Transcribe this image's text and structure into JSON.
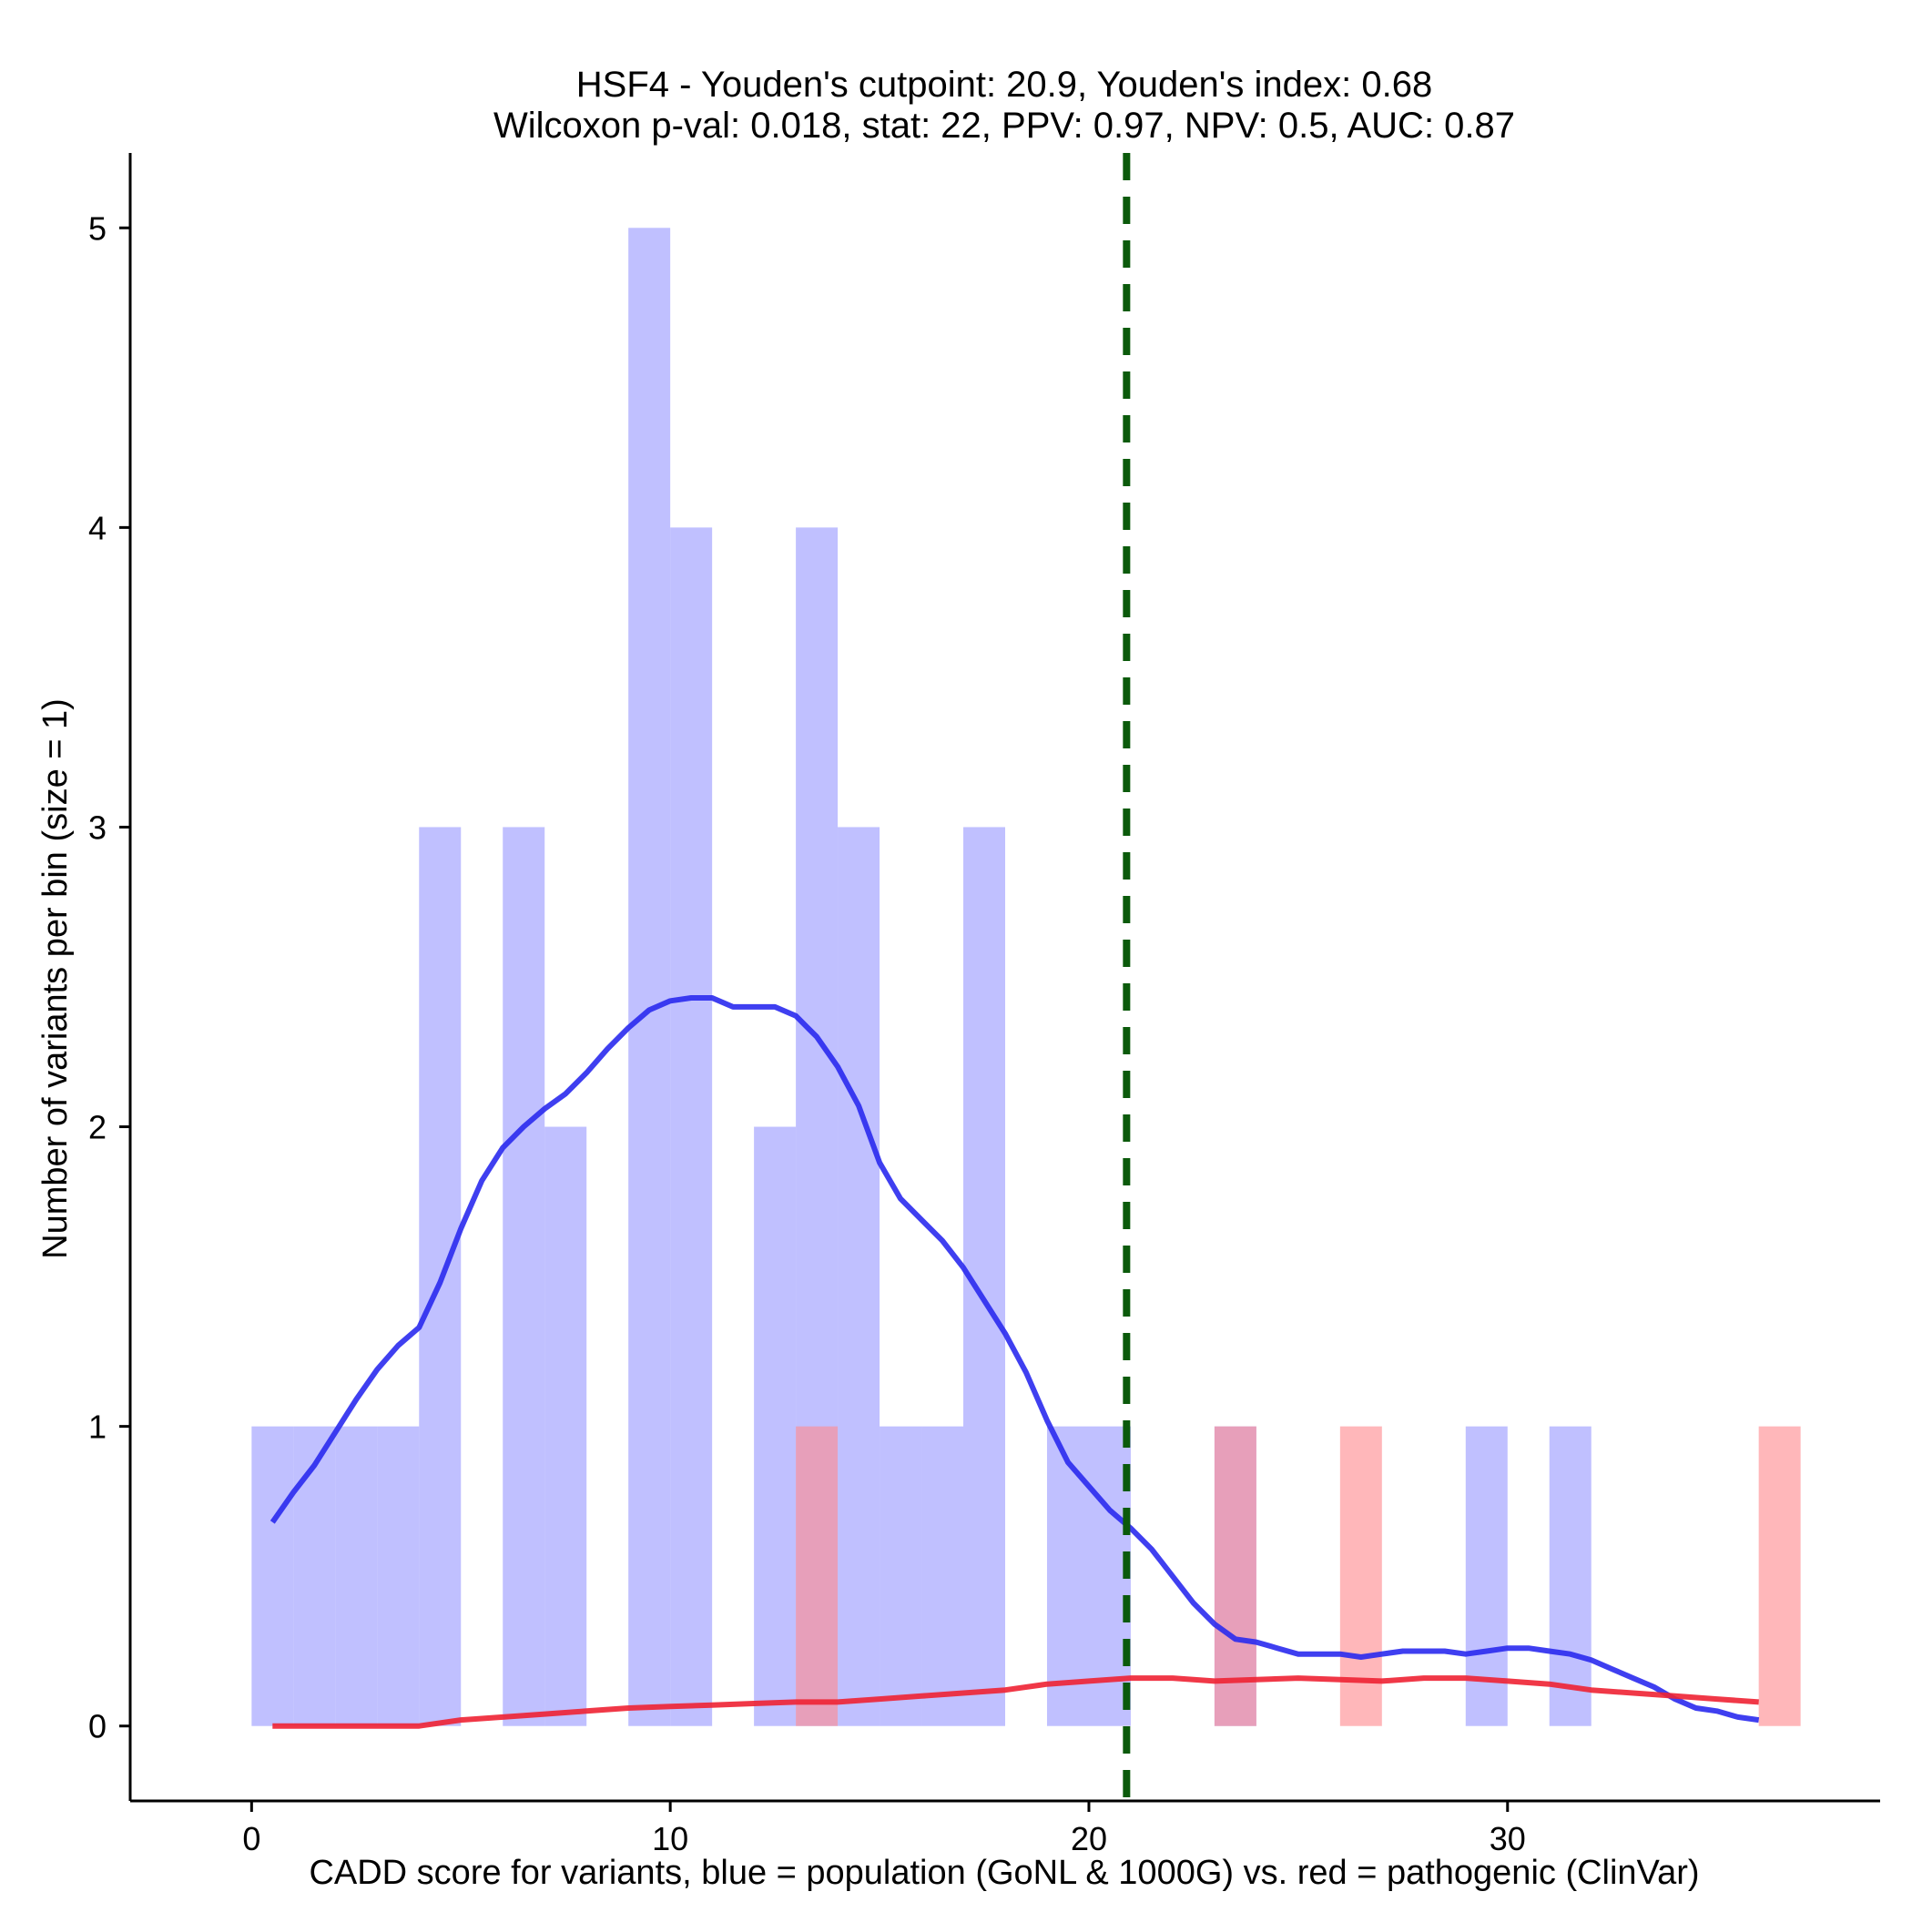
{
  "chart_data": {
    "type": "bar",
    "title_line1": "HSF4 - Youden's cutpoint: 20.9, Youden's index: 0.68",
    "title_line2": "Wilcoxon p-val: 0.018, stat: 22, PPV: 0.97, NPV: 0.5, AUC: 0.87",
    "xlabel": "CADD score for variants, blue = population (GoNL & 1000G) vs. red = pathogenic (ClinVar)",
    "ylabel": "Number of variants per bin (size = 1)",
    "xlim": [
      -2.9,
      38.9
    ],
    "ylim": [
      -0.25,
      5.25
    ],
    "x_ticks": [
      0,
      10,
      20,
      30
    ],
    "y_ticks": [
      0,
      1,
      2,
      3,
      4,
      5
    ],
    "cutpoint": 20.9,
    "colors": {
      "population_bar": "#9999ff",
      "pathogenic_bar": "#ff8a8f",
      "population_line": "#2a2aee",
      "pathogenic_line": "#ee2233",
      "cutpoint_line": "#0b5a0b",
      "axis": "#000000"
    },
    "series": [
      {
        "name": "population (GoNL & 1000G)",
        "bin_width": 1,
        "bins": [
          {
            "x": 0,
            "count": 1
          },
          {
            "x": 1,
            "count": 1
          },
          {
            "x": 2,
            "count": 1
          },
          {
            "x": 3,
            "count": 1
          },
          {
            "x": 4,
            "count": 3
          },
          {
            "x": 6,
            "count": 3
          },
          {
            "x": 7,
            "count": 2
          },
          {
            "x": 9,
            "count": 5
          },
          {
            "x": 10,
            "count": 4
          },
          {
            "x": 12,
            "count": 2
          },
          {
            "x": 13,
            "count": 4
          },
          {
            "x": 14,
            "count": 3
          },
          {
            "x": 15,
            "count": 1
          },
          {
            "x": 16,
            "count": 1
          },
          {
            "x": 17,
            "count": 3
          },
          {
            "x": 19,
            "count": 1
          },
          {
            "x": 20,
            "count": 1
          },
          {
            "x": 23,
            "count": 1
          },
          {
            "x": 29,
            "count": 1
          },
          {
            "x": 31,
            "count": 1
          }
        ]
      },
      {
        "name": "pathogenic (ClinVar)",
        "bin_width": 1,
        "bins": [
          {
            "x": 13,
            "count": 1
          },
          {
            "x": 23,
            "count": 1
          },
          {
            "x": 26,
            "count": 1
          },
          {
            "x": 36,
            "count": 1
          }
        ]
      }
    ],
    "density_lines": [
      {
        "name": "population density",
        "points": [
          [
            0.5,
            0.68
          ],
          [
            1.0,
            0.78
          ],
          [
            1.5,
            0.87
          ],
          [
            2.0,
            0.98
          ],
          [
            2.5,
            1.09
          ],
          [
            3.0,
            1.19
          ],
          [
            3.5,
            1.27
          ],
          [
            4.0,
            1.33
          ],
          [
            4.5,
            1.48
          ],
          [
            5.0,
            1.66
          ],
          [
            5.5,
            1.82
          ],
          [
            6.0,
            1.93
          ],
          [
            6.5,
            2.0
          ],
          [
            7.0,
            2.06
          ],
          [
            7.5,
            2.11
          ],
          [
            8.0,
            2.18
          ],
          [
            8.5,
            2.26
          ],
          [
            9.0,
            2.33
          ],
          [
            9.5,
            2.39
          ],
          [
            10.0,
            2.42
          ],
          [
            10.5,
            2.43
          ],
          [
            11.0,
            2.43
          ],
          [
            11.5,
            2.4
          ],
          [
            12.0,
            2.4
          ],
          [
            12.5,
            2.4
          ],
          [
            13.0,
            2.37
          ],
          [
            13.5,
            2.3
          ],
          [
            14.0,
            2.2
          ],
          [
            14.5,
            2.07
          ],
          [
            15.0,
            1.88
          ],
          [
            15.5,
            1.76
          ],
          [
            16.0,
            1.69
          ],
          [
            16.5,
            1.62
          ],
          [
            17.0,
            1.53
          ],
          [
            17.5,
            1.42
          ],
          [
            18.0,
            1.31
          ],
          [
            18.5,
            1.18
          ],
          [
            19.0,
            1.02
          ],
          [
            19.5,
            0.88
          ],
          [
            20.0,
            0.8
          ],
          [
            20.5,
            0.72
          ],
          [
            21.0,
            0.66
          ],
          [
            21.5,
            0.59
          ],
          [
            22.0,
            0.5
          ],
          [
            22.5,
            0.41
          ],
          [
            23.0,
            0.34
          ],
          [
            23.5,
            0.29
          ],
          [
            24.0,
            0.28
          ],
          [
            24.5,
            0.26
          ],
          [
            25.0,
            0.24
          ],
          [
            25.5,
            0.24
          ],
          [
            26.0,
            0.24
          ],
          [
            26.5,
            0.23
          ],
          [
            27.0,
            0.24
          ],
          [
            27.5,
            0.25
          ],
          [
            28.0,
            0.25
          ],
          [
            28.5,
            0.25
          ],
          [
            29.0,
            0.24
          ],
          [
            29.5,
            0.25
          ],
          [
            30.0,
            0.26
          ],
          [
            30.5,
            0.26
          ],
          [
            31.0,
            0.25
          ],
          [
            31.5,
            0.24
          ],
          [
            32.0,
            0.22
          ],
          [
            32.5,
            0.19
          ],
          [
            33.0,
            0.16
          ],
          [
            33.5,
            0.13
          ],
          [
            34.0,
            0.09
          ],
          [
            34.5,
            0.06
          ],
          [
            35.0,
            0.05
          ],
          [
            35.5,
            0.03
          ],
          [
            36.0,
            0.02
          ]
        ]
      },
      {
        "name": "pathogenic density",
        "points": [
          [
            0.5,
            0.0
          ],
          [
            2.0,
            0.0
          ],
          [
            4.0,
            0.0
          ],
          [
            5.0,
            0.02
          ],
          [
            6.0,
            0.03
          ],
          [
            7.0,
            0.04
          ],
          [
            8.0,
            0.05
          ],
          [
            9.0,
            0.06
          ],
          [
            10.0,
            0.065
          ],
          [
            11.0,
            0.07
          ],
          [
            12.0,
            0.075
          ],
          [
            13.0,
            0.08
          ],
          [
            14.0,
            0.08
          ],
          [
            15.0,
            0.09
          ],
          [
            16.0,
            0.1
          ],
          [
            17.0,
            0.11
          ],
          [
            18.0,
            0.12
          ],
          [
            19.0,
            0.14
          ],
          [
            20.0,
            0.15
          ],
          [
            21.0,
            0.16
          ],
          [
            22.0,
            0.16
          ],
          [
            23.0,
            0.15
          ],
          [
            24.0,
            0.155
          ],
          [
            25.0,
            0.16
          ],
          [
            26.0,
            0.155
          ],
          [
            27.0,
            0.15
          ],
          [
            28.0,
            0.16
          ],
          [
            29.0,
            0.16
          ],
          [
            30.0,
            0.15
          ],
          [
            31.0,
            0.14
          ],
          [
            32.0,
            0.12
          ],
          [
            33.0,
            0.11
          ],
          [
            34.0,
            0.1
          ],
          [
            35.0,
            0.09
          ],
          [
            36.0,
            0.08
          ]
        ]
      }
    ]
  }
}
